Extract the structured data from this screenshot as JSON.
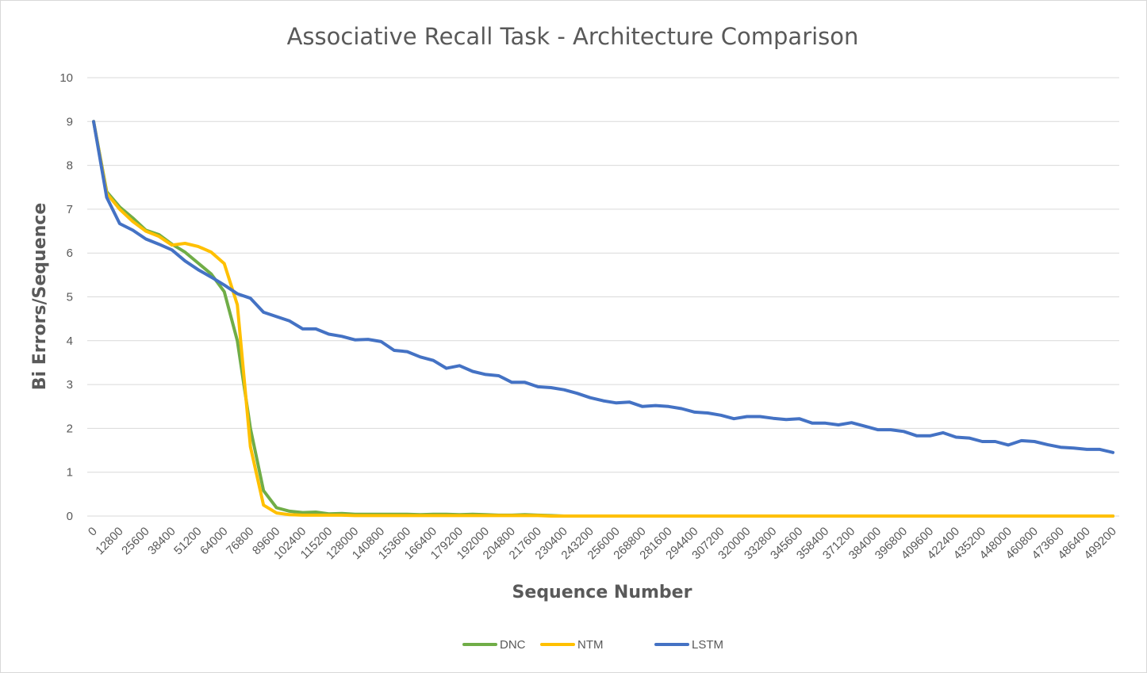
{
  "chart_data": {
    "type": "line",
    "title": "Associative Recall Task - Architecture Comparison",
    "xlabel": "Sequence Number",
    "ylabel": "Bi Errors/Sequence",
    "ylim": [
      0,
      10
    ],
    "yticks": [
      0,
      1,
      2,
      3,
      4,
      5,
      6,
      7,
      8,
      9,
      10
    ],
    "grid": true,
    "legend_position": "bottom",
    "x": [
      0,
      6400,
      12800,
      19200,
      25600,
      32000,
      38400,
      44800,
      51200,
      57600,
      64000,
      70400,
      76800,
      83200,
      89600,
      96000,
      102400,
      108800,
      115200,
      121600,
      128000,
      134400,
      140800,
      147200,
      153600,
      160000,
      166400,
      172800,
      179200,
      185600,
      192000,
      198400,
      204800,
      211200,
      217600,
      224000,
      230400,
      236800,
      243200,
      249600,
      256000,
      262400,
      268800,
      275200,
      281600,
      288000,
      294400,
      300800,
      307200,
      313600,
      320000,
      326400,
      332800,
      339200,
      345600,
      352000,
      358400,
      364800,
      371200,
      377600,
      384000,
      390400,
      396800,
      403200,
      409600,
      416000,
      422400,
      428800,
      435200,
      441600,
      448000,
      454400,
      460800,
      467200,
      473600,
      480000,
      486400,
      492800,
      499200
    ],
    "x_tick_labels": [
      "0",
      "12800",
      "25600",
      "38400",
      "51200",
      "64000",
      "76800",
      "89600",
      "102400",
      "115200",
      "128000",
      "140800",
      "153600",
      "166400",
      "179200",
      "192000",
      "204800",
      "217600",
      "230400",
      "243200",
      "256000",
      "268800",
      "281600",
      "294400",
      "307200",
      "320000",
      "332800",
      "345600",
      "358400",
      "371200",
      "384000",
      "396800",
      "409600",
      "422400",
      "435200",
      "448000",
      "460800",
      "473600",
      "486400",
      "499200"
    ],
    "series": [
      {
        "name": "DNC",
        "color": "#70ad47",
        "values": [
          9.0,
          7.4,
          7.05,
          6.8,
          6.52,
          6.42,
          6.2,
          6.02,
          5.77,
          5.52,
          5.12,
          4.0,
          2.0,
          0.58,
          0.19,
          0.11,
          0.08,
          0.09,
          0.05,
          0.06,
          0.04,
          0.04,
          0.04,
          0.04,
          0.04,
          0.03,
          0.04,
          0.04,
          0.03,
          0.04,
          0.03,
          0.02,
          0.02,
          0.03,
          0.02,
          0.01,
          0,
          0,
          0,
          0,
          0,
          0,
          0,
          0,
          0,
          0,
          0,
          0,
          0,
          0,
          0,
          0,
          0,
          0,
          0,
          0,
          0,
          0,
          0,
          0,
          0,
          0,
          0,
          0,
          0,
          0,
          0,
          0,
          0,
          0,
          0,
          0,
          0,
          0,
          0,
          0,
          0,
          0,
          0
        ]
      },
      {
        "name": "NTM",
        "color": "#ffc000",
        "values": [
          9.0,
          7.36,
          7.0,
          6.72,
          6.5,
          6.38,
          6.18,
          6.22,
          6.15,
          6.02,
          5.76,
          4.82,
          1.58,
          0.25,
          0.07,
          0.03,
          0.02,
          0.02,
          0.02,
          0.02,
          0.01,
          0.01,
          0.01,
          0.01,
          0.01,
          0.01,
          0.01,
          0.01,
          0.01,
          0.01,
          0.01,
          0.01,
          0.01,
          0.01,
          0.01,
          0,
          0,
          0,
          0,
          0,
          0,
          0,
          0,
          0,
          0,
          0,
          0,
          0,
          0,
          0,
          0,
          0,
          0,
          0,
          0,
          0,
          0,
          0,
          0,
          0,
          0,
          0,
          0,
          0,
          0,
          0,
          0,
          0,
          0,
          0,
          0,
          0,
          0,
          0,
          0,
          0,
          0,
          0,
          0
        ]
      },
      {
        "name": "LSTM",
        "color": "#4472c4",
        "values": [
          9.0,
          7.27,
          6.67,
          6.52,
          6.32,
          6.2,
          6.07,
          5.82,
          5.62,
          5.45,
          5.27,
          5.07,
          4.97,
          4.65,
          4.55,
          4.45,
          4.27,
          4.27,
          4.15,
          4.1,
          4.02,
          4.03,
          3.98,
          3.78,
          3.75,
          3.63,
          3.55,
          3.37,
          3.43,
          3.3,
          3.23,
          3.2,
          3.05,
          3.05,
          2.95,
          2.93,
          2.88,
          2.8,
          2.7,
          2.63,
          2.58,
          2.6,
          2.5,
          2.52,
          2.5,
          2.45,
          2.37,
          2.35,
          2.3,
          2.22,
          2.27,
          2.27,
          2.23,
          2.2,
          2.22,
          2.12,
          2.12,
          2.08,
          2.13,
          2.05,
          1.97,
          1.97,
          1.93,
          1.83,
          1.83,
          1.9,
          1.8,
          1.78,
          1.7,
          1.7,
          1.62,
          1.72,
          1.7,
          1.63,
          1.57,
          1.55,
          1.52,
          1.52,
          1.45
        ]
      }
    ]
  }
}
